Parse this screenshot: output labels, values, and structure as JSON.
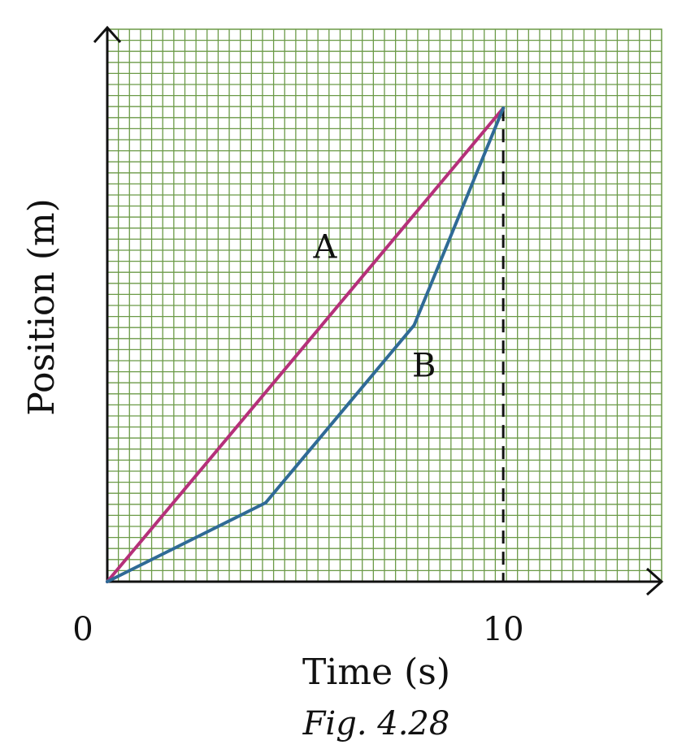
{
  "chart_data": {
    "type": "line",
    "xlabel": "Time (s)",
    "ylabel": "Position (m)",
    "xlim": [
      0,
      14
    ],
    "ylim": [
      0,
      14
    ],
    "x_ticks": [
      "0",
      "10"
    ],
    "grid": true,
    "series": [
      {
        "name": "A",
        "color": "#b5307a",
        "points": [
          [
            0,
            0
          ],
          [
            10,
            12
          ]
        ]
      },
      {
        "name": "B",
        "color": "#2f6a96",
        "points": [
          [
            0,
            0
          ],
          [
            4,
            2
          ],
          [
            7.75,
            6.5
          ],
          [
            10,
            12
          ]
        ]
      }
    ],
    "annotations": [
      {
        "type": "dashed-vertical-line",
        "x": 10,
        "y_from": 0,
        "y_to": 12
      }
    ],
    "caption": "Fig. 4.28",
    "grid_color": "#6b9a47"
  }
}
